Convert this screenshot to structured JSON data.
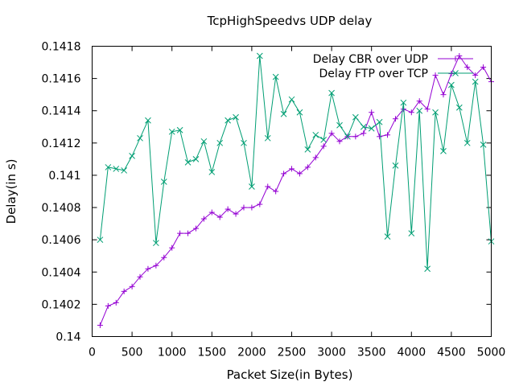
{
  "chart_data": {
    "type": "line",
    "title": "TcpHighSpeedvs UDP delay",
    "xlabel": "Packet Size(in Bytes)",
    "ylabel": "Delay(in s)",
    "xlim": [
      0,
      5000
    ],
    "ylim": [
      0.14,
      0.1418
    ],
    "x_ticks": [
      "0",
      "500",
      "1000",
      "1500",
      "2000",
      "2500",
      "3000",
      "3500",
      "4000",
      "4500",
      "5000"
    ],
    "y_ticks": [
      "0.14",
      "0.1402",
      "0.1404",
      "0.1406",
      "0.1408",
      "0.141",
      "0.1412",
      "0.1414",
      "0.1416",
      "0.1418"
    ],
    "grid": false,
    "legend_position": "top-right",
    "x": [
      100,
      200,
      300,
      400,
      500,
      600,
      700,
      800,
      900,
      1000,
      1100,
      1200,
      1300,
      1400,
      1500,
      1600,
      1700,
      1800,
      1900,
      2000,
      2100,
      2200,
      2300,
      2400,
      2500,
      2600,
      2700,
      2800,
      2900,
      3000,
      3100,
      3200,
      3300,
      3400,
      3500,
      3600,
      3700,
      3800,
      3900,
      4000,
      4100,
      4200,
      4300,
      4400,
      4500,
      4600,
      4700,
      4800,
      4900,
      5000
    ],
    "series": [
      {
        "name": "Delay CBR over UDP",
        "color": "#9400d3",
        "marker": "+",
        "values": [
          0.14007,
          0.14019,
          0.14021,
          0.14028,
          0.14031,
          0.14037,
          0.14042,
          0.14044,
          0.14049,
          0.14055,
          0.14064,
          0.14064,
          0.14067,
          0.14073,
          0.14077,
          0.14074,
          0.14079,
          0.14076,
          0.1408,
          0.1408,
          0.14082,
          0.14093,
          0.1409,
          0.14101,
          0.14104,
          0.14101,
          0.14105,
          0.14111,
          0.14118,
          0.14126,
          0.14121,
          0.14124,
          0.14124,
          0.14126,
          0.14139,
          0.14124,
          0.14125,
          0.14135,
          0.14141,
          0.14139,
          0.14146,
          0.14141,
          0.14162,
          0.1415,
          0.14163,
          0.14174,
          0.14167,
          0.14162,
          0.14167,
          0.14158
        ]
      },
      {
        "name": "Delay FTP over TCP",
        "color": "#009e73",
        "marker": "x",
        "values": [
          0.1406,
          0.14105,
          0.14104,
          0.14103,
          0.14112,
          0.14123,
          0.14134,
          0.14058,
          0.14096,
          0.14127,
          0.14128,
          0.14108,
          0.1411,
          0.14121,
          0.14102,
          0.1412,
          0.14134,
          0.14136,
          0.1412,
          0.14093,
          0.14174,
          0.14123,
          0.14161,
          0.14138,
          0.14147,
          0.14139,
          0.14116,
          0.14125,
          0.14122,
          0.14151,
          0.14131,
          0.14124,
          0.14136,
          0.1413,
          0.14129,
          0.14133,
          0.14062,
          0.14106,
          0.14145,
          0.14064,
          0.1414,
          0.14042,
          0.14139,
          0.14115,
          0.14156,
          0.14142,
          0.1412,
          0.14158,
          0.14119,
          0.14059
        ]
      }
    ]
  }
}
